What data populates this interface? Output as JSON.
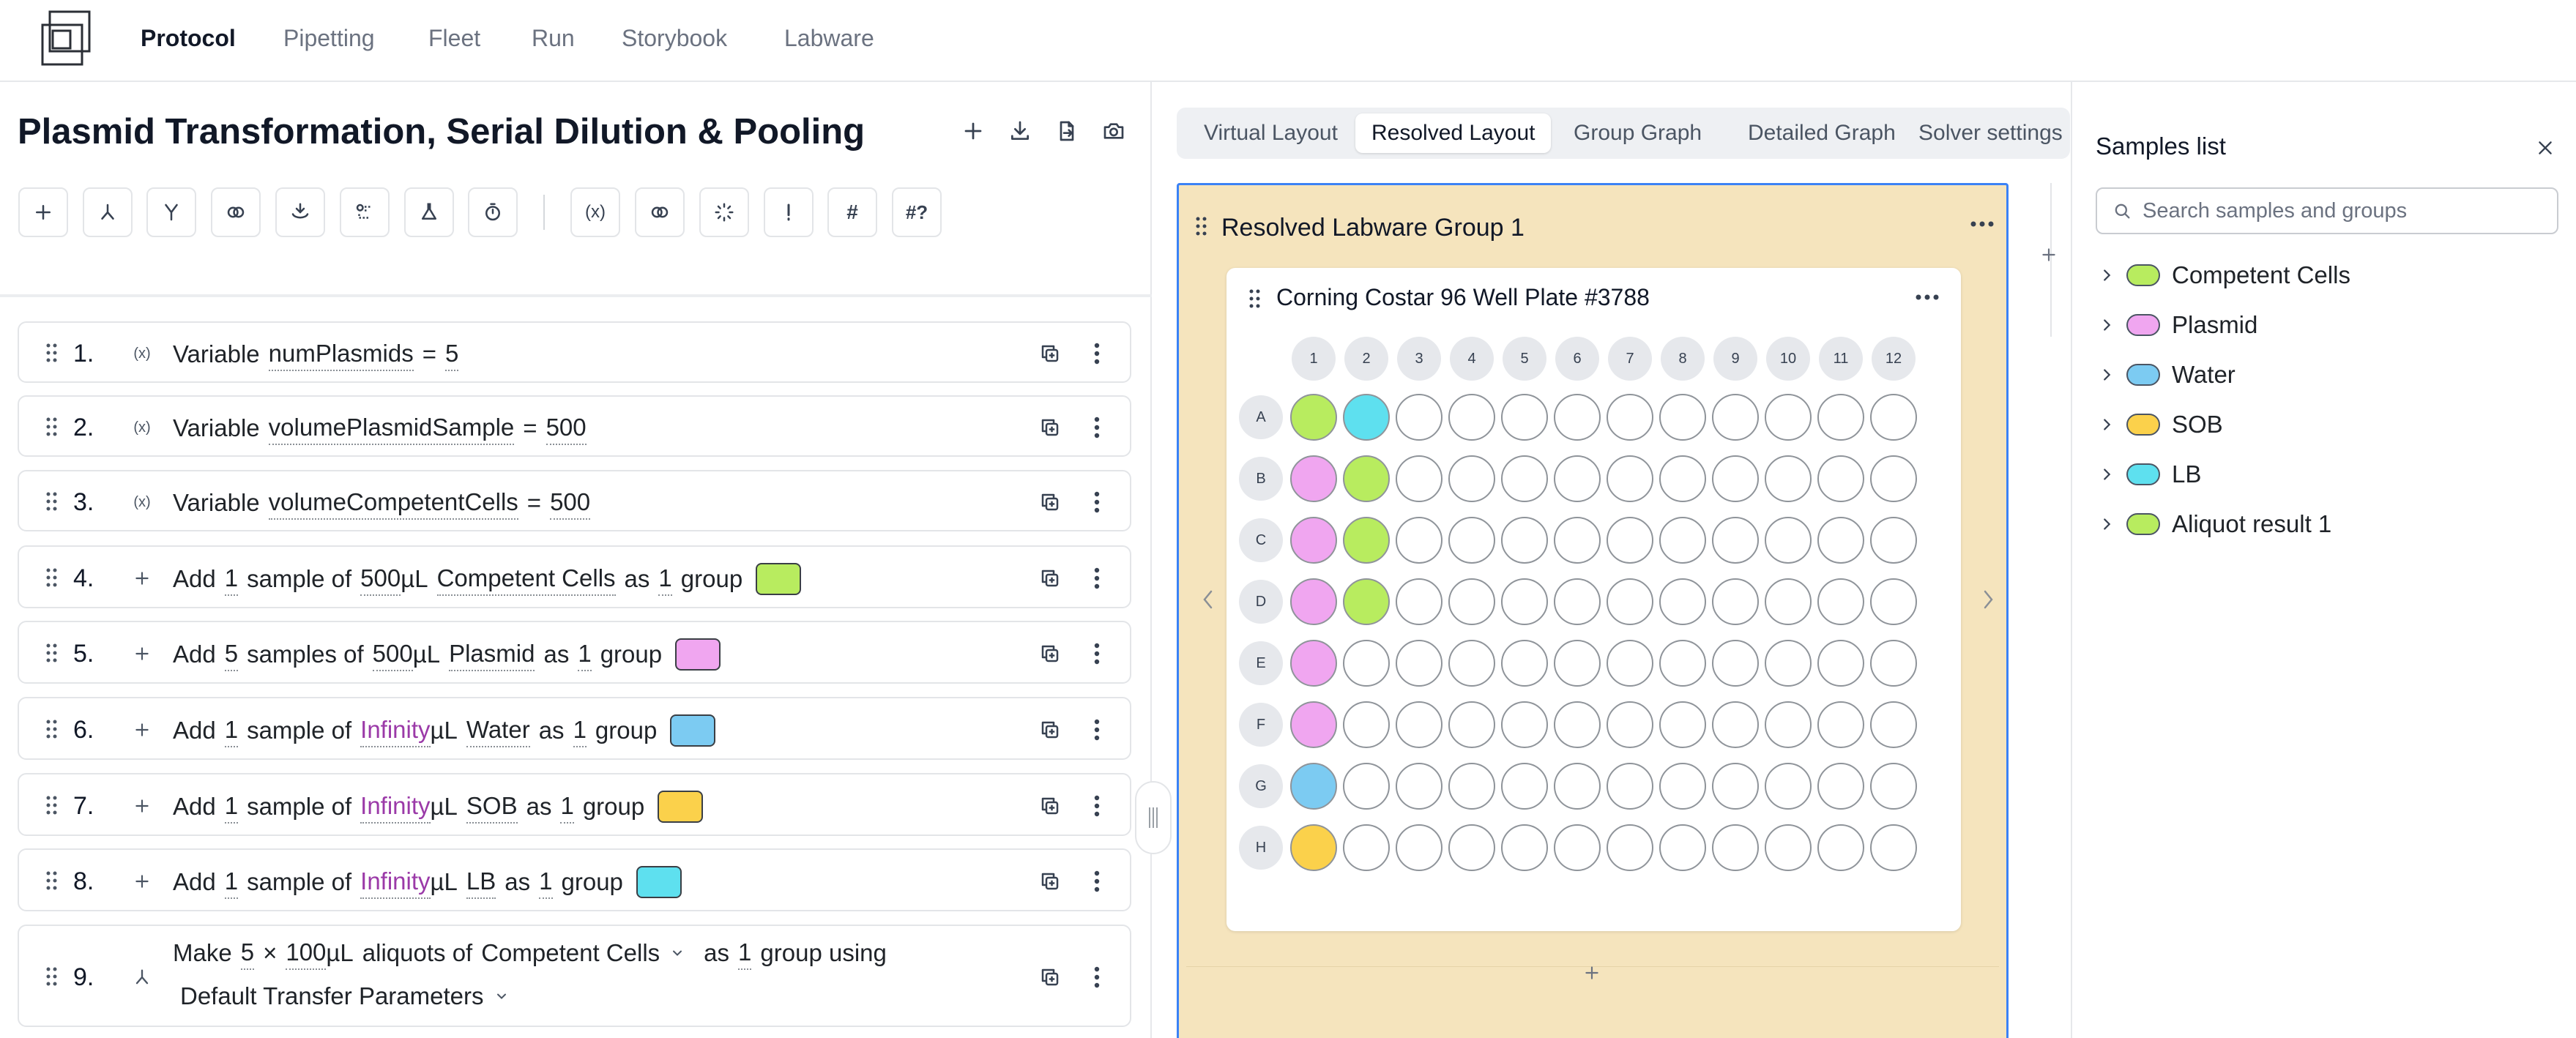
{
  "nav": {
    "items": [
      {
        "label": "Protocol",
        "active": true
      },
      {
        "label": "Pipetting",
        "active": false
      },
      {
        "label": "Fleet",
        "active": false
      },
      {
        "label": "Run",
        "active": false
      },
      {
        "label": "Storybook",
        "active": false
      },
      {
        "label": "Labware",
        "active": false
      }
    ]
  },
  "protocol": {
    "title": "Plasmid Transformation, Serial Dilution & Pooling",
    "header_icons": [
      "plus-icon",
      "download-icon",
      "export-icon",
      "camera-icon"
    ],
    "toolbar_icons": [
      "plus-icon",
      "split-icon",
      "merge-icon",
      "link-icon",
      "collect-icon",
      "group-icon",
      "flask-icon",
      "timer-icon",
      "variable-icon",
      "connect-icon",
      "loader-icon",
      "alert-icon",
      "hash-icon",
      "hash-question-icon"
    ]
  },
  "steps": [
    {
      "num": "1.",
      "icon": "variable-icon",
      "parts": [
        {
          "t": "w",
          "v": "Variable"
        },
        {
          "t": "v",
          "v": "numPlasmids"
        },
        {
          "t": "w",
          "v": "="
        },
        {
          "t": "v",
          "v": "5"
        }
      ]
    },
    {
      "num": "2.",
      "icon": "variable-icon",
      "parts": [
        {
          "t": "w",
          "v": "Variable"
        },
        {
          "t": "v",
          "v": "volumePlasmidSample"
        },
        {
          "t": "w",
          "v": "="
        },
        {
          "t": "v",
          "v": "500"
        }
      ]
    },
    {
      "num": "3.",
      "icon": "variable-icon",
      "parts": [
        {
          "t": "w",
          "v": "Variable"
        },
        {
          "t": "v",
          "v": "volumeCompetentCells"
        },
        {
          "t": "w",
          "v": "="
        },
        {
          "t": "v",
          "v": "500"
        }
      ]
    },
    {
      "num": "4.",
      "icon": "plus-icon",
      "parts": [
        {
          "t": "w",
          "v": "Add"
        },
        {
          "t": "v",
          "v": "1"
        },
        {
          "t": "w",
          "v": "sample of"
        },
        {
          "t": "vt",
          "v": "500"
        },
        {
          "t": "w",
          "v": "µL"
        },
        {
          "t": "v",
          "v": "Competent Cells"
        },
        {
          "t": "w",
          "v": "as"
        },
        {
          "t": "v",
          "v": "1"
        },
        {
          "t": "w",
          "v": "group"
        },
        {
          "t": "sw",
          "v": "#b8ec5f"
        }
      ]
    },
    {
      "num": "5.",
      "icon": "plus-icon",
      "parts": [
        {
          "t": "w",
          "v": "Add"
        },
        {
          "t": "v",
          "v": "5"
        },
        {
          "t": "w",
          "v": "samples of"
        },
        {
          "t": "vt",
          "v": "500"
        },
        {
          "t": "w",
          "v": "µL"
        },
        {
          "t": "v",
          "v": "Plasmid"
        },
        {
          "t": "w",
          "v": "as"
        },
        {
          "t": "v",
          "v": "1"
        },
        {
          "t": "w",
          "v": "group"
        },
        {
          "t": "sw",
          "v": "#f0a6f0"
        }
      ]
    },
    {
      "num": "6.",
      "icon": "plus-icon",
      "parts": [
        {
          "t": "w",
          "v": "Add"
        },
        {
          "t": "v",
          "v": "1"
        },
        {
          "t": "w",
          "v": "sample of"
        },
        {
          "t": "inf",
          "v": "Infinity"
        },
        {
          "t": "w",
          "v": "µL"
        },
        {
          "t": "v",
          "v": "Water"
        },
        {
          "t": "w",
          "v": "as"
        },
        {
          "t": "v",
          "v": "1"
        },
        {
          "t": "w",
          "v": "group"
        },
        {
          "t": "sw",
          "v": "#7ccbf2"
        }
      ]
    },
    {
      "num": "7.",
      "icon": "plus-icon",
      "parts": [
        {
          "t": "w",
          "v": "Add"
        },
        {
          "t": "v",
          "v": "1"
        },
        {
          "t": "w",
          "v": "sample of"
        },
        {
          "t": "inf",
          "v": "Infinity"
        },
        {
          "t": "w",
          "v": "µL"
        },
        {
          "t": "v",
          "v": "SOB"
        },
        {
          "t": "w",
          "v": "as"
        },
        {
          "t": "v",
          "v": "1"
        },
        {
          "t": "w",
          "v": "group"
        },
        {
          "t": "sw",
          "v": "#fbd14b"
        }
      ]
    },
    {
      "num": "8.",
      "icon": "plus-icon",
      "parts": [
        {
          "t": "w",
          "v": "Add"
        },
        {
          "t": "v",
          "v": "1"
        },
        {
          "t": "w",
          "v": "sample of"
        },
        {
          "t": "inf",
          "v": "Infinity"
        },
        {
          "t": "w",
          "v": "µL"
        },
        {
          "t": "v",
          "v": "LB"
        },
        {
          "t": "w",
          "v": "as"
        },
        {
          "t": "v",
          "v": "1"
        },
        {
          "t": "w",
          "v": "group"
        },
        {
          "t": "sw",
          "v": "#5ee0ef"
        }
      ]
    },
    {
      "num": "9.",
      "icon": "aliquot-icon",
      "parts": [
        {
          "t": "w",
          "v": "Make"
        },
        {
          "t": "v",
          "v": "5"
        },
        {
          "t": "w",
          "v": "×"
        },
        {
          "t": "vt",
          "v": "100"
        },
        {
          "t": "w",
          "v": "µL"
        },
        {
          "t": "w",
          "v": "aliquots of"
        },
        {
          "t": "dd",
          "v": "Competent Cells"
        },
        {
          "t": "w",
          "v": "as"
        },
        {
          "t": "v",
          "v": "1"
        },
        {
          "t": "w",
          "v": "group using"
        }
      ],
      "parts2": [
        {
          "t": "dd",
          "v": "Default Transfer Parameters"
        }
      ]
    }
  ],
  "layout_tabs": [
    {
      "label": "Virtual Layout",
      "active": false
    },
    {
      "label": "Resolved Layout",
      "active": true
    },
    {
      "label": "Group Graph",
      "active": false
    },
    {
      "label": "Detailed Graph",
      "active": false
    },
    {
      "label": "Solver settings",
      "active": false
    }
  ],
  "group": {
    "title": "Resolved Labware Group 1"
  },
  "plate": {
    "title": "Corning Costar 96 Well Plate #3788",
    "columns": [
      "1",
      "2",
      "3",
      "4",
      "5",
      "6",
      "7",
      "8",
      "9",
      "10",
      "11",
      "12"
    ],
    "rows": [
      "A",
      "B",
      "C",
      "D",
      "E",
      "F",
      "G",
      "H"
    ],
    "filled": [
      {
        "well": "A1",
        "color": "#b8ec5f"
      },
      {
        "well": "A2",
        "color": "#5ee0ef"
      },
      {
        "well": "B1",
        "color": "#f0a6f0"
      },
      {
        "well": "B2",
        "color": "#b8ec5f"
      },
      {
        "well": "C1",
        "color": "#f0a6f0"
      },
      {
        "well": "C2",
        "color": "#b8ec5f"
      },
      {
        "well": "D1",
        "color": "#f0a6f0"
      },
      {
        "well": "D2",
        "color": "#b8ec5f"
      },
      {
        "well": "E1",
        "color": "#f0a6f0"
      },
      {
        "well": "F1",
        "color": "#f0a6f0"
      },
      {
        "well": "G1",
        "color": "#7ccbf2"
      },
      {
        "well": "H1",
        "color": "#fbd14b"
      }
    ]
  },
  "samples_panel": {
    "title": "Samples list",
    "search_placeholder": "Search samples and groups",
    "items": [
      {
        "label": "Competent Cells",
        "color": "#b8ec5f"
      },
      {
        "label": "Plasmid",
        "color": "#f0a6f0"
      },
      {
        "label": "Water",
        "color": "#7ccbf2"
      },
      {
        "label": "SOB",
        "color": "#fbd14b"
      },
      {
        "label": "LB",
        "color": "#5ee0ef"
      },
      {
        "label": "Aliquot result 1",
        "color": "#b8ec5f"
      }
    ]
  }
}
